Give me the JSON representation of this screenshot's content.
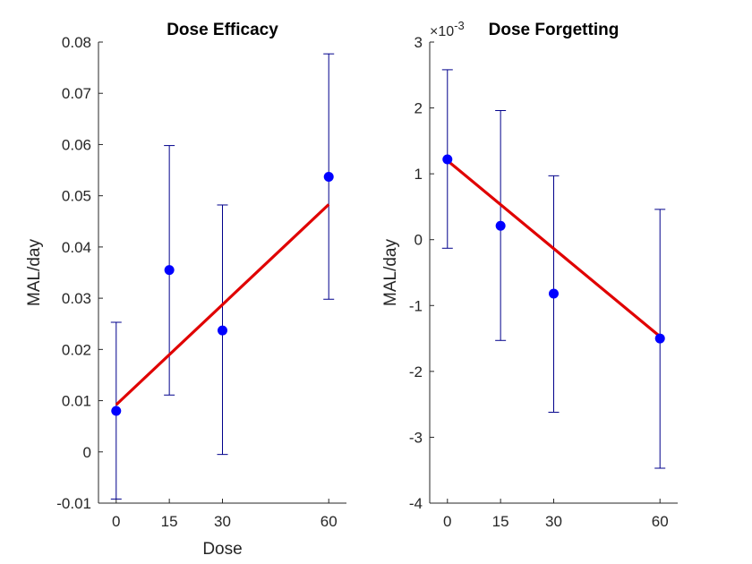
{
  "chart_data": [
    {
      "type": "scatter",
      "title": "Dose Efficacy",
      "xlabel": "Dose",
      "ylabel": "MAL/day",
      "xlim": [
        -5,
        65
      ],
      "ylim": [
        -0.01,
        0.08
      ],
      "x_ticks": [
        0,
        15,
        30,
        60
      ],
      "x_tick_labels": [
        "0",
        "15",
        "30",
        "60"
      ],
      "y_ticks": [
        -0.01,
        0,
        0.01,
        0.02,
        0.03,
        0.04,
        0.05,
        0.06,
        0.07,
        0.08
      ],
      "y_tick_labels": [
        "-0.01",
        "0",
        "0.01",
        "0.02",
        "0.03",
        "0.04",
        "0.05",
        "0.06",
        "0.07",
        "0.08"
      ],
      "exponent_label": "",
      "points": [
        {
          "x": 0,
          "y": 0.008,
          "err_low": -0.0092,
          "err_high": 0.0253
        },
        {
          "x": 15,
          "y": 0.0355,
          "err_low": 0.0111,
          "err_high": 0.0598
        },
        {
          "x": 30,
          "y": 0.0237,
          "err_low": -0.0005,
          "err_high": 0.0482
        },
        {
          "x": 60,
          "y": 0.0537,
          "err_low": 0.0298,
          "err_high": 0.0777
        }
      ],
      "fit_line": {
        "x": [
          0,
          60
        ],
        "y": [
          0.0092,
          0.0483
        ]
      },
      "colors": {
        "points": "#0000ff",
        "errorbars": "#00008b",
        "fit": "#e00000"
      }
    },
    {
      "type": "scatter",
      "title": "Dose Forgetting",
      "xlabel": "",
      "ylabel": "MAL/day",
      "xlim": [
        -5,
        65
      ],
      "ylim": [
        -4,
        3
      ],
      "x_ticks": [
        0,
        15,
        30,
        60
      ],
      "x_tick_labels": [
        "0",
        "15",
        "30",
        "60"
      ],
      "y_ticks": [
        -4,
        -3,
        -2,
        -1,
        0,
        1,
        2,
        3
      ],
      "y_tick_labels": [
        "-4",
        "-3",
        "-2",
        "-1",
        "0",
        "1",
        "2",
        "3"
      ],
      "exponent_label": "×10-3",
      "points": [
        {
          "x": 0,
          "y": 1.22,
          "err_low": -0.13,
          "err_high": 2.58
        },
        {
          "x": 15,
          "y": 0.21,
          "err_low": -1.53,
          "err_high": 1.96
        },
        {
          "x": 30,
          "y": -0.82,
          "err_low": -2.62,
          "err_high": 0.97
        },
        {
          "x": 60,
          "y": -1.5,
          "err_low": -3.47,
          "err_high": 0.46
        }
      ],
      "fit_line": {
        "x": [
          0,
          60
        ],
        "y": [
          1.2,
          -1.47
        ]
      },
      "colors": {
        "points": "#0000ff",
        "errorbars": "#00008b",
        "fit": "#e00000"
      }
    }
  ]
}
